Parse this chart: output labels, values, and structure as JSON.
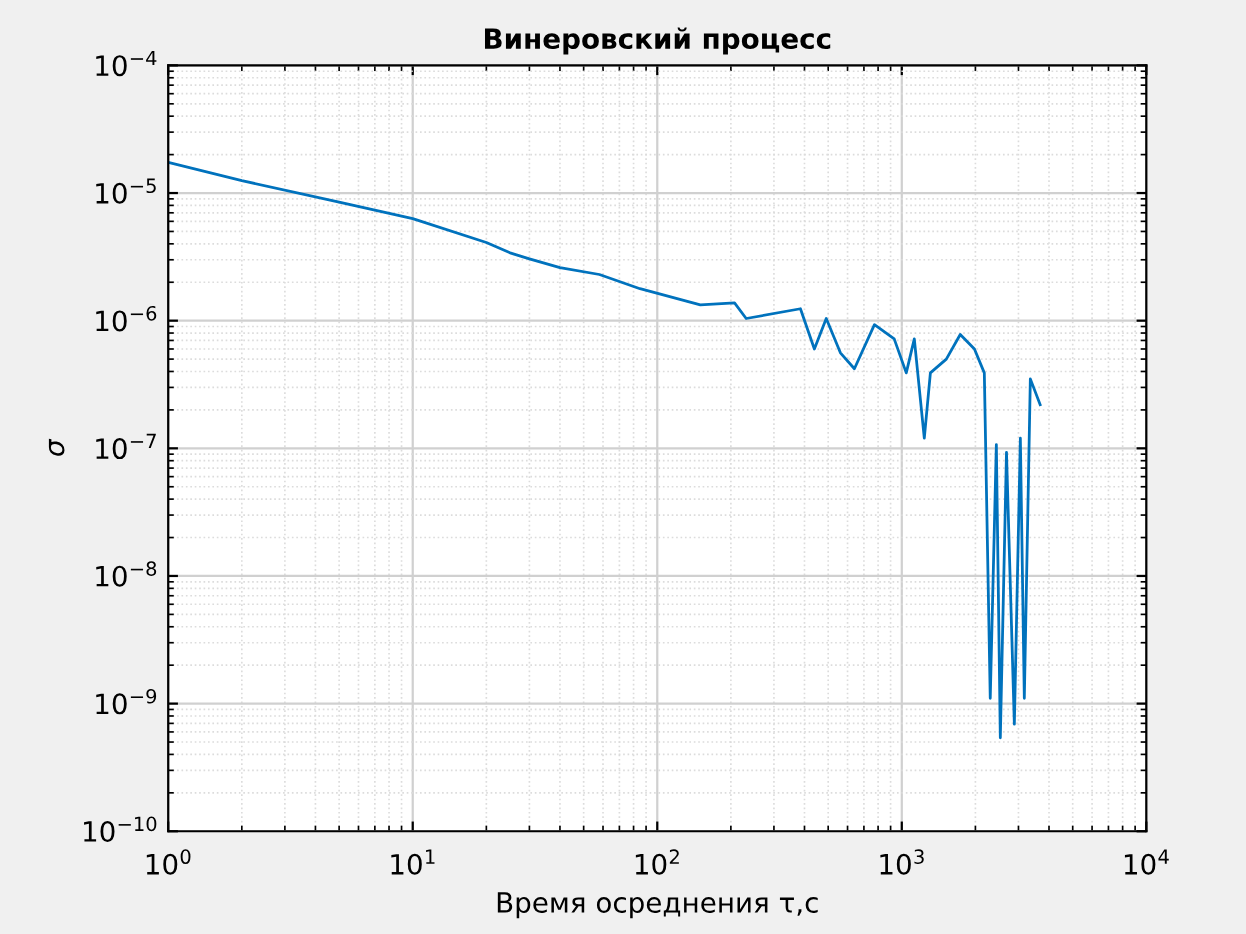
{
  "chart_data": {
    "type": "line",
    "title": "Винеровский процесс",
    "xlabel": "Время осреднения τ,c",
    "ylabel": "σ",
    "log": "xy",
    "grid": true,
    "marker": "none",
    "line_style": "solid",
    "xlim": [
      1,
      10000
    ],
    "ylim": [
      1e-10,
      0.0001
    ],
    "xticks": [
      {
        "value": 1,
        "label": "10$^{0}$"
      },
      {
        "value": 10,
        "label": "10$^{1}$"
      },
      {
        "value": 100,
        "label": "10$^{2}$"
      },
      {
        "value": 1000,
        "label": "10$^{3}$"
      },
      {
        "value": 10000,
        "label": "10$^{4}$"
      }
    ],
    "yticks": [
      {
        "value": 1e-10,
        "label": "10$^{−10}$"
      },
      {
        "value": 1e-09,
        "label": "10$^{−9}$"
      },
      {
        "value": 1e-08,
        "label": "10$^{−8}$"
      },
      {
        "value": 1e-07,
        "label": "10$^{−7}$"
      },
      {
        "value": 1e-06,
        "label": "10$^{−6}$"
      },
      {
        "value": 1e-05,
        "label": "10$^{−5}$"
      },
      {
        "value": 0.0001,
        "label": "10$^{−4}$"
      }
    ],
    "series": [
      {
        "color": "#0072bd",
        "x": [
          1,
          2,
          5,
          10,
          20,
          25,
          30,
          40,
          58,
          85,
          150,
          207,
          231,
          385,
          439,
          491,
          561,
          640,
          773,
          931,
          1043,
          1125,
          1236,
          1309,
          1521,
          1734,
          1982,
          2175,
          2300,
          2436,
          2529,
          2680,
          2886,
          3054,
          3170,
          3355,
          3680
        ],
        "values": [
          1.74e-05,
          1.25e-05,
          8.5e-06,
          6.3e-06,
          4.1e-06,
          3.4e-06,
          3.05e-06,
          2.6e-06,
          2.3e-06,
          1.78e-06,
          1.33e-06,
          1.38e-06,
          1.04e-06,
          1.24e-06,
          6e-07,
          1.04e-06,
          5.6e-07,
          4.2e-07,
          9.3e-07,
          7.2e-07,
          3.9e-07,
          7.2e-07,
          1.2e-07,
          3.9e-07,
          5e-07,
          7.8e-07,
          6e-07,
          3.9e-07,
          1.1e-09,
          1.07e-07,
          5.4e-10,
          9.3e-08,
          6.9e-10,
          1.2e-07,
          1.1e-09,
          3.5e-07,
          2.2e-07
        ]
      }
    ]
  }
}
